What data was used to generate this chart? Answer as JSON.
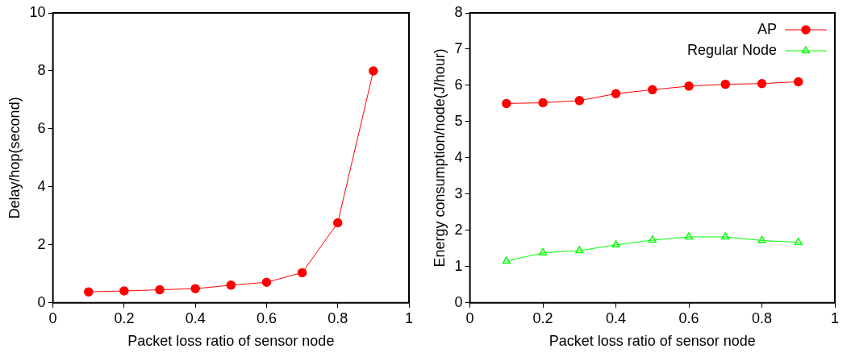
{
  "chart_data": [
    {
      "type": "line",
      "xlabel": "Packet loss ratio of sensor node",
      "ylabel": "Delay/hop(second)",
      "x": [
        0.1,
        0.2,
        0.3,
        0.4,
        0.5,
        0.6,
        0.7,
        0.8,
        0.9
      ],
      "xlim": [
        0,
        1
      ],
      "xticks": [
        0,
        0.2,
        0.4,
        0.6,
        0.8,
        1
      ],
      "ylim": [
        0,
        10
      ],
      "yticks": [
        0,
        2,
        4,
        6,
        8,
        10
      ],
      "grid": false,
      "legend": false,
      "series": [
        {
          "color": "#ff0000",
          "marker": "circle",
          "values": [
            0.38,
            0.41,
            0.45,
            0.49,
            0.61,
            0.71,
            1.04,
            2.76,
            8.0
          ]
        }
      ]
    },
    {
      "type": "line",
      "xlabel": "Packet loss ratio of sensor node",
      "ylabel": "Energy consumption/node(J/hour)",
      "x": [
        0.1,
        0.2,
        0.3,
        0.4,
        0.5,
        0.6,
        0.7,
        0.8,
        0.9
      ],
      "xlim": [
        0,
        1
      ],
      "xticks": [
        0,
        0.2,
        0.4,
        0.6,
        0.8,
        1
      ],
      "ylim": [
        0,
        8
      ],
      "yticks": [
        0,
        1,
        2,
        3,
        4,
        5,
        6,
        7,
        8
      ],
      "grid": false,
      "legend": "top right",
      "series": [
        {
          "name": "AP",
          "color": "#ff0000",
          "marker": "circle",
          "values": [
            5.5,
            5.52,
            5.58,
            5.77,
            5.88,
            5.98,
            6.03,
            6.05,
            6.1
          ]
        },
        {
          "name": "Regular Node",
          "color": "#00ff00",
          "marker": "triangle",
          "values": [
            1.15,
            1.38,
            1.44,
            1.6,
            1.73,
            1.82,
            1.82,
            1.72,
            1.67
          ]
        }
      ]
    }
  ]
}
